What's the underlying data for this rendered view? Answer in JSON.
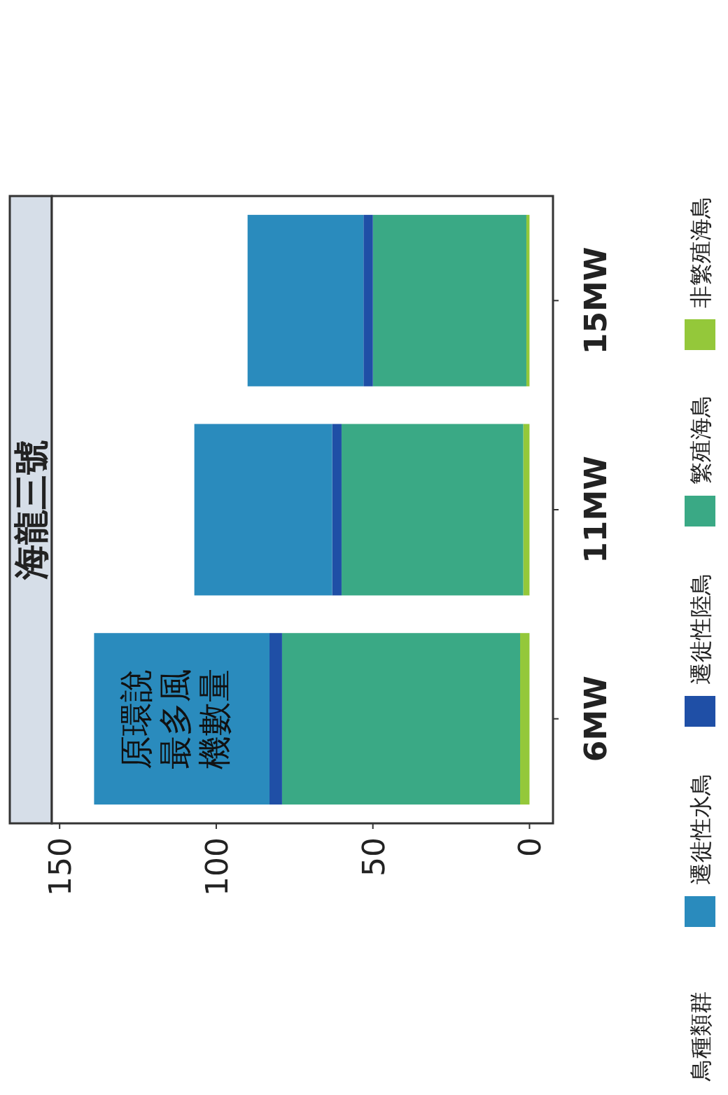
{
  "chart_data": {
    "type": "bar",
    "orientation": "horizontal",
    "title": "海龍三號",
    "legend_title": "鳥種類群",
    "stacked": true,
    "legend": "right",
    "categories": [
      "15MW",
      "11MW",
      "6MW"
    ],
    "series": [
      {
        "name": "非繁殖海鳥",
        "color": "#94c83a",
        "values": [
          1,
          2,
          3
        ]
      },
      {
        "name": "繁殖海鳥",
        "color": "#3aa985",
        "values": [
          49,
          58,
          76
        ]
      },
      {
        "name": "遷徙性陸鳥",
        "color": "#1f4fa6",
        "values": [
          3,
          3,
          4
        ]
      },
      {
        "name": "遷徙性水鳥",
        "color": "#2a8bbd",
        "values": [
          37,
          44,
          56
        ]
      }
    ],
    "xlim": [
      152.5,
      -7.5
    ],
    "xticks": [
      0,
      50,
      100,
      150
    ],
    "annotations": [
      {
        "text": "原環說最多風機數量",
        "x": 113,
        "y": "6MW"
      }
    ]
  }
}
